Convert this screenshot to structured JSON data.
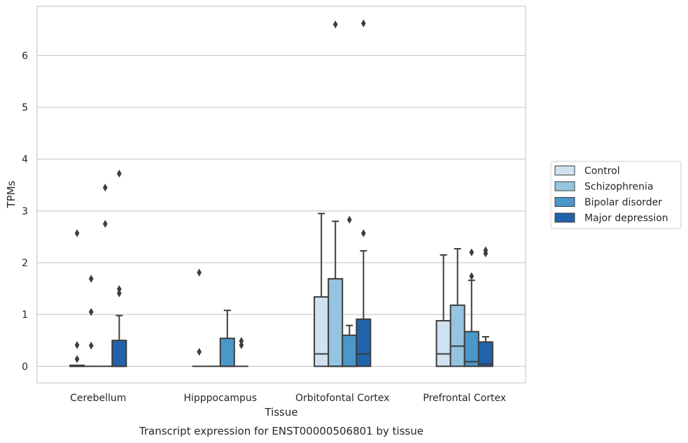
{
  "chart_data": {
    "type": "boxplot",
    "caption": "Transcript expression for ENST00000506801 by tissue",
    "xlabel": "Tissue",
    "ylabel": "TPMs",
    "ylim": [
      -0.32,
      6.95
    ],
    "yticks": [
      0,
      1,
      2,
      3,
      4,
      5,
      6
    ],
    "grid": "horizontal",
    "legend_position": "right",
    "categories": [
      "Cerebellum",
      "Hipppocampus",
      "Orbitofontal Cortex",
      "Prefrontal Cortex"
    ],
    "series": [
      {
        "name": "Control",
        "color": "#d0e1f2",
        "boxes": [
          {
            "q1": 0,
            "median": 0,
            "q3": 0.02,
            "whisker_low": 0,
            "whisker_high": 0.02,
            "outliers": [
              0.14,
              0.41,
              2.57
            ]
          },
          {
            "q1": 0,
            "median": 0,
            "q3": 0,
            "whisker_low": 0,
            "whisker_high": 0,
            "outliers": [
              0.28,
              1.81
            ]
          },
          {
            "q1": 0,
            "median": 0.24,
            "q3": 1.34,
            "whisker_low": 0,
            "whisker_high": 2.95,
            "outliers": []
          },
          {
            "q1": 0,
            "median": 0.24,
            "q3": 0.88,
            "whisker_low": 0,
            "whisker_high": 2.15,
            "outliers": []
          }
        ]
      },
      {
        "name": "Schizophrenia",
        "color": "#94c4df",
        "boxes": [
          {
            "q1": 0,
            "median": 0,
            "q3": 0,
            "whisker_low": 0,
            "whisker_high": 0,
            "outliers": [
              0.4,
              1.05,
              1.69
            ]
          },
          {
            "q1": 0,
            "median": 0,
            "q3": 0,
            "whisker_low": 0,
            "whisker_high": 0,
            "outliers": []
          },
          {
            "q1": 0,
            "median": 0,
            "q3": 1.69,
            "whisker_low": 0,
            "whisker_high": 2.8,
            "outliers": [
              6.6
            ]
          },
          {
            "q1": 0,
            "median": 0.39,
            "q3": 1.18,
            "whisker_low": 0,
            "whisker_high": 2.27,
            "outliers": []
          }
        ]
      },
      {
        "name": "Bipolar disorder",
        "color": "#4a98c9",
        "boxes": [
          {
            "q1": 0,
            "median": 0,
            "q3": 0,
            "whisker_low": 0,
            "whisker_high": 0,
            "outliers": [
              2.75,
              3.45
            ]
          },
          {
            "q1": 0,
            "median": 0,
            "q3": 0.54,
            "whisker_low": 0,
            "whisker_high": 1.08,
            "outliers": []
          },
          {
            "q1": 0,
            "median": 0,
            "q3": 0.6,
            "whisker_low": 0,
            "whisker_high": 0.79,
            "outliers": [
              2.83
            ]
          },
          {
            "q1": 0,
            "median": 0.09,
            "q3": 0.67,
            "whisker_low": 0,
            "whisker_high": 1.66,
            "outliers": [
              1.74,
              2.2
            ]
          }
        ]
      },
      {
        "name": "Major depression",
        "color": "#2163aa",
        "boxes": [
          {
            "q1": 0,
            "median": 0,
            "q3": 0.5,
            "whisker_low": 0,
            "whisker_high": 0.98,
            "outliers": [
              1.41,
              1.49,
              3.72
            ]
          },
          {
            "q1": 0,
            "median": 0,
            "q3": 0,
            "whisker_low": 0,
            "whisker_high": 0,
            "outliers": [
              0.41,
              0.49
            ]
          },
          {
            "q1": 0,
            "median": 0.24,
            "q3": 0.91,
            "whisker_low": 0,
            "whisker_high": 2.23,
            "outliers": [
              2.57,
              6.62
            ]
          },
          {
            "q1": 0,
            "median": 0.04,
            "q3": 0.47,
            "whisker_low": 0,
            "whisker_high": 0.57,
            "outliers": [
              2.18,
              2.24
            ]
          }
        ]
      }
    ]
  }
}
